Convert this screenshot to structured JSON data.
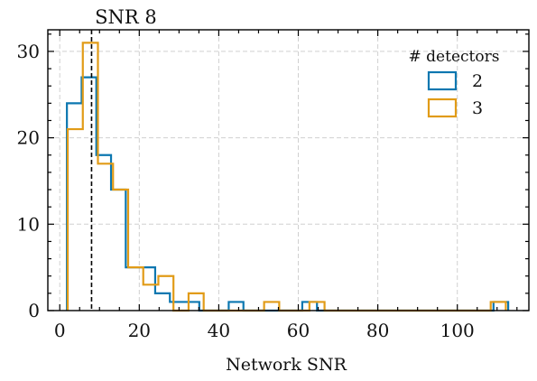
{
  "chart_data": {
    "type": "histogram",
    "xlabel": "Network SNR",
    "ylabel": "",
    "xlim": [
      -3,
      118
    ],
    "ylim": [
      0,
      32.5
    ],
    "x_ticks": [
      0,
      20,
      40,
      60,
      80,
      100
    ],
    "y_ticks": [
      0,
      10,
      20,
      30
    ],
    "grid": true,
    "legend": {
      "title": "# detectors",
      "position": "top-right"
    },
    "annotation": {
      "text": "SNR 8",
      "x": 8,
      "style": "dashed"
    },
    "series": [
      {
        "name": "2",
        "color": "#0C77B0",
        "bin_edges": [
          1.8,
          5.5,
          9.2,
          12.9,
          16.6,
          20.3,
          24.0,
          27.7,
          31.4,
          35.1,
          38.8,
          42.5,
          46.2,
          49.9,
          53.6,
          57.3,
          61.0,
          64.7,
          68.4,
          72.1,
          75.8,
          79.5,
          83.2,
          86.9,
          90.6,
          94.3,
          98.0,
          101.7,
          105.4,
          109.1,
          112.8
        ],
        "counts": [
          24,
          27,
          18,
          14,
          5,
          5,
          2,
          1,
          1,
          0,
          0,
          1,
          0,
          0,
          0,
          0,
          1,
          0,
          0,
          0,
          0,
          0,
          0,
          0,
          0,
          0,
          0,
          0,
          0,
          1
        ]
      },
      {
        "name": "3",
        "color": "#E19B17",
        "bin_edges": [
          2.0,
          5.8,
          9.6,
          13.4,
          17.2,
          21.0,
          24.8,
          28.6,
          32.4,
          36.2,
          40.0,
          43.8,
          47.6,
          51.4,
          55.2,
          59.0,
          62.8,
          66.6,
          70.4,
          74.2,
          78.0,
          81.8,
          85.6,
          89.4,
          93.2,
          97.0,
          100.8,
          104.6,
          108.4,
          112.2
        ],
        "counts": [
          21,
          31,
          17,
          14,
          5,
          3,
          4,
          0,
          2,
          0,
          0,
          0,
          0,
          1,
          0,
          0,
          1,
          0,
          0,
          0,
          0,
          0,
          0,
          0,
          0,
          0,
          0,
          0,
          1
        ]
      }
    ]
  }
}
